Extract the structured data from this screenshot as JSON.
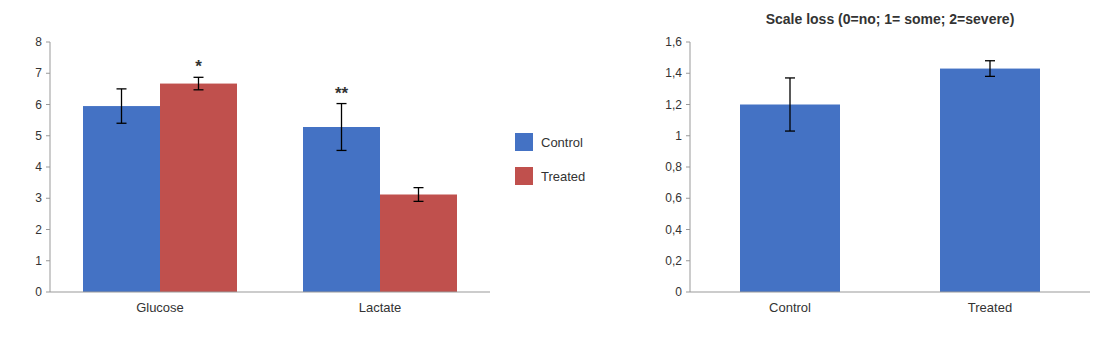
{
  "chart_data": [
    {
      "type": "bar",
      "categories": [
        "Glucose",
        "Lactate"
      ],
      "series": [
        {
          "name": "Control",
          "color": "#4472C4",
          "values": [
            5.95,
            5.28
          ],
          "errors": [
            0.55,
            0.75
          ]
        },
        {
          "name": "Treated",
          "color": "#C0504D",
          "values": [
            6.67,
            3.12
          ],
          "errors": [
            0.2,
            0.22
          ]
        }
      ],
      "ylim": [
        0,
        8
      ],
      "yticks": [
        0,
        1,
        2,
        3,
        4,
        5,
        6,
        7,
        8
      ],
      "annotations": [
        {
          "text": "*",
          "category": "Glucose",
          "series": "Treated"
        },
        {
          "text": "**",
          "category": "Lactate",
          "series": "Control"
        }
      ],
      "legend": "right",
      "grid": false
    },
    {
      "type": "bar",
      "title": "Scale loss (0=no; 1= some; 2=severe)",
      "categories": [
        "Control",
        "Treated"
      ],
      "values": [
        1.2,
        1.43
      ],
      "errors": [
        0.17,
        0.05
      ],
      "color": "#4472C4",
      "ylim": [
        0,
        1.6
      ],
      "yticks": [
        0,
        {
          "value": 0.2,
          "label": "0,2"
        },
        {
          "value": 0.4,
          "label": "0,4"
        },
        {
          "value": 0.6,
          "label": "0,6"
        },
        {
          "value": 0.8,
          "label": "0,8"
        },
        1,
        {
          "value": 1.2,
          "label": "1,2"
        },
        {
          "value": 1.4,
          "label": "1,4"
        },
        {
          "value": 1.6,
          "label": "1,6"
        }
      ],
      "grid": false
    }
  ]
}
